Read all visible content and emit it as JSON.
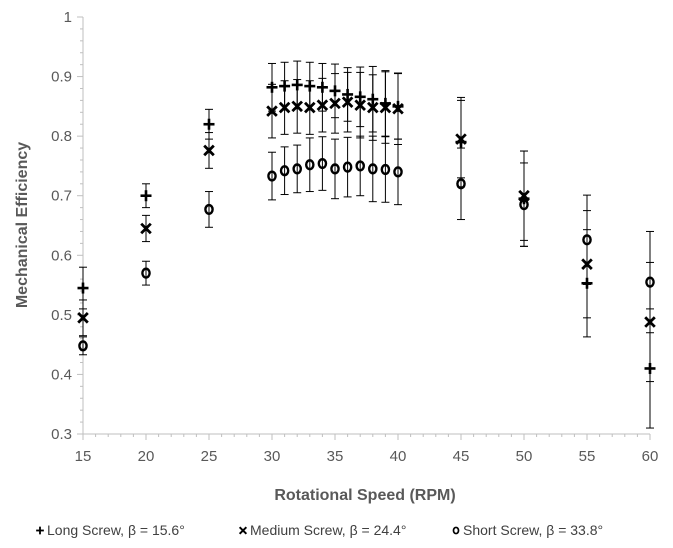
{
  "chart_data": {
    "type": "scatter",
    "title": "",
    "xlabel": "Rotational Speed (RPM)",
    "ylabel": "Mechanical Efficiency",
    "xlim": [
      15,
      60
    ],
    "ylim": [
      0.3,
      1
    ],
    "xticks": [
      15,
      20,
      25,
      30,
      35,
      40,
      45,
      50,
      55,
      60
    ],
    "yticks": [
      0.3,
      0.4,
      0.5,
      0.6,
      0.7,
      0.8,
      0.9,
      1
    ],
    "ytick_labels": [
      "0.3",
      "0.4",
      "0.5",
      "0.6",
      "0.7",
      "0.8",
      "0.9",
      "1"
    ],
    "x_minor_step": 1,
    "y_minor_step": 0.02,
    "grid": false,
    "legend_position": "bottom",
    "series": [
      {
        "name": "Long Screw, β = 15.6°",
        "marker": "plus",
        "color": "#000000",
        "points": [
          {
            "x": 15,
            "y": 0.545,
            "err": 0.035
          },
          {
            "x": 20,
            "y": 0.7,
            "err": 0.02
          },
          {
            "x": 25,
            "y": 0.82,
            "err": 0.025
          },
          {
            "x": 30,
            "y": 0.882,
            "err": 0.04
          },
          {
            "x": 31,
            "y": 0.884,
            "err": 0.04
          },
          {
            "x": 32,
            "y": 0.886,
            "err": 0.04
          },
          {
            "x": 33,
            "y": 0.884,
            "err": 0.04
          },
          {
            "x": 34,
            "y": 0.882,
            "err": 0.04
          },
          {
            "x": 35,
            "y": 0.876,
            "err": 0.045
          },
          {
            "x": 36,
            "y": 0.87,
            "err": 0.045
          },
          {
            "x": 37,
            "y": 0.866,
            "err": 0.05
          },
          {
            "x": 38,
            "y": 0.862,
            "err": 0.055
          },
          {
            "x": 39,
            "y": 0.855,
            "err": 0.055
          },
          {
            "x": 40,
            "y": 0.85,
            "err": 0.055
          },
          {
            "x": 45,
            "y": 0.79,
            "err": 0.075
          },
          {
            "x": 50,
            "y": 0.695,
            "err": 0.08
          },
          {
            "x": 55,
            "y": 0.553,
            "err": 0.09
          },
          {
            "x": 60,
            "y": 0.41,
            "err": 0.1
          }
        ]
      },
      {
        "name": "Medium Screw, β = 24.4°",
        "marker": "x",
        "color": "#000000",
        "points": [
          {
            "x": 15,
            "y": 0.495,
            "err": 0.03
          },
          {
            "x": 20,
            "y": 0.645,
            "err": 0.022
          },
          {
            "x": 25,
            "y": 0.776,
            "err": 0.03
          },
          {
            "x": 30,
            "y": 0.842,
            "err": 0.045
          },
          {
            "x": 31,
            "y": 0.848,
            "err": 0.045
          },
          {
            "x": 32,
            "y": 0.85,
            "err": 0.045
          },
          {
            "x": 33,
            "y": 0.848,
            "err": 0.045
          },
          {
            "x": 34,
            "y": 0.852,
            "err": 0.045
          },
          {
            "x": 35,
            "y": 0.855,
            "err": 0.05
          },
          {
            "x": 36,
            "y": 0.857,
            "err": 0.05
          },
          {
            "x": 37,
            "y": 0.852,
            "err": 0.055
          },
          {
            "x": 38,
            "y": 0.848,
            "err": 0.055
          },
          {
            "x": 39,
            "y": 0.848,
            "err": 0.06
          },
          {
            "x": 40,
            "y": 0.846,
            "err": 0.06
          },
          {
            "x": 45,
            "y": 0.795,
            "err": 0.065
          },
          {
            "x": 50,
            "y": 0.7,
            "err": 0.075
          },
          {
            "x": 55,
            "y": 0.585,
            "err": 0.09
          },
          {
            "x": 60,
            "y": 0.488,
            "err": 0.1
          }
        ]
      },
      {
        "name": "Short Screw, β = 33.8°",
        "marker": "circle",
        "color": "#000000",
        "points": [
          {
            "x": 15,
            "y": 0.448,
            "err": 0.015
          },
          {
            "x": 20,
            "y": 0.57,
            "err": 0.02
          },
          {
            "x": 25,
            "y": 0.677,
            "err": 0.03
          },
          {
            "x": 30,
            "y": 0.733,
            "err": 0.04
          },
          {
            "x": 31,
            "y": 0.742,
            "err": 0.04
          },
          {
            "x": 32,
            "y": 0.745,
            "err": 0.04
          },
          {
            "x": 33,
            "y": 0.752,
            "err": 0.045
          },
          {
            "x": 34,
            "y": 0.754,
            "err": 0.045
          },
          {
            "x": 35,
            "y": 0.745,
            "err": 0.05
          },
          {
            "x": 36,
            "y": 0.748,
            "err": 0.05
          },
          {
            "x": 37,
            "y": 0.75,
            "err": 0.05
          },
          {
            "x": 38,
            "y": 0.745,
            "err": 0.055
          },
          {
            "x": 39,
            "y": 0.744,
            "err": 0.055
          },
          {
            "x": 40,
            "y": 0.74,
            "err": 0.055
          },
          {
            "x": 45,
            "y": 0.72,
            "err": 0.06
          },
          {
            "x": 50,
            "y": 0.685,
            "err": 0.07
          },
          {
            "x": 55,
            "y": 0.626,
            "err": 0.075
          },
          {
            "x": 60,
            "y": 0.555,
            "err": 0.085
          }
        ]
      }
    ]
  }
}
